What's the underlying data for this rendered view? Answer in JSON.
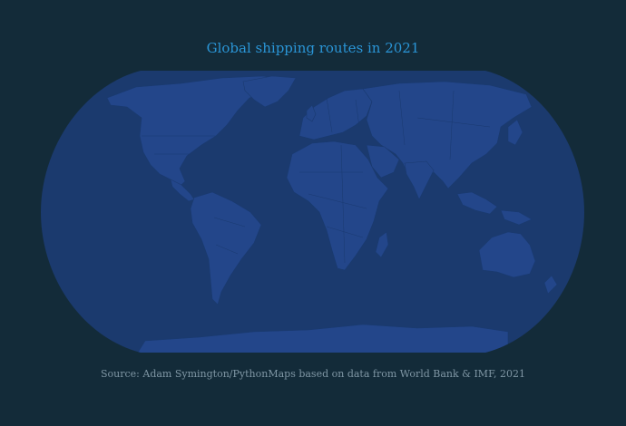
{
  "title": "Global shipping routes in 2021",
  "source": "Source: Adam Symington/PythonMaps based on data from World Bank & IMF, 2021",
  "colors": {
    "background": "#132b39",
    "ocean": "#1b3a6e",
    "land": "#23468a",
    "border": "#1a3a70",
    "title": "#2a95d6",
    "source": "#7f96a4"
  }
}
